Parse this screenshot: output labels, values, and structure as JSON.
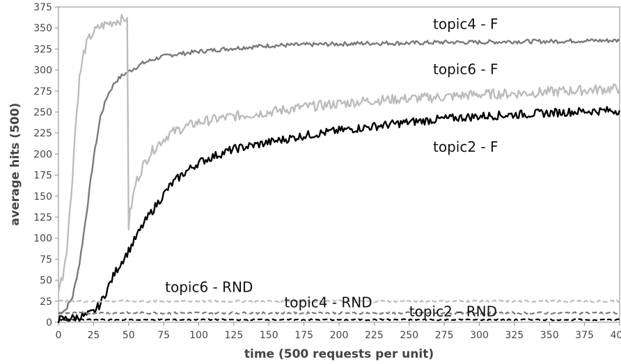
{
  "chart_data": {
    "type": "line",
    "title": "",
    "xlabel": "time (500 requests per unit)",
    "ylabel": "average hits (500)",
    "xlim": [
      0,
      400
    ],
    "ylim": [
      0,
      375
    ],
    "x_ticks": [
      0,
      25,
      50,
      75,
      100,
      125,
      150,
      175,
      200,
      225,
      250,
      275,
      300,
      325,
      350,
      375,
      400
    ],
    "y_ticks": [
      0,
      25,
      50,
      75,
      100,
      125,
      150,
      175,
      200,
      225,
      250,
      275,
      300,
      325,
      350,
      375
    ],
    "grid": false,
    "legend": "none",
    "series": [
      {
        "name": "topic4 - F",
        "color": "#7a7a7a",
        "style": "solid",
        "x": [
          0,
          5,
          10,
          15,
          20,
          25,
          30,
          35,
          40,
          45,
          50,
          55,
          60,
          70,
          80,
          90,
          100,
          125,
          150,
          175,
          200,
          225,
          250,
          275,
          300,
          325,
          350,
          375,
          400
        ],
        "y": [
          10,
          15,
          30,
          70,
          130,
          195,
          245,
          270,
          285,
          293,
          298,
          303,
          308,
          314,
          318,
          320,
          322,
          326,
          329,
          330,
          331,
          332,
          332,
          333,
          333,
          334,
          334,
          335,
          335
        ]
      },
      {
        "name": "topic6 - F",
        "color": "#bcbcbc",
        "style": "solid",
        "x": [
          0,
          3,
          6,
          9,
          12,
          15,
          18,
          21,
          25,
          30,
          35,
          40,
          45,
          49,
          50,
          51,
          55,
          60,
          65,
          70,
          75,
          80,
          90,
          100,
          125,
          150,
          175,
          200,
          225,
          250,
          275,
          300,
          325,
          350,
          375,
          400
        ],
        "y": [
          40,
          55,
          90,
          150,
          230,
          290,
          320,
          335,
          345,
          352,
          355,
          358,
          360,
          362,
          110,
          130,
          165,
          185,
          200,
          210,
          218,
          225,
          232,
          238,
          245,
          250,
          256,
          260,
          264,
          266,
          268,
          271,
          272,
          274,
          276,
          278
        ]
      },
      {
        "name": "topic2 - F",
        "color": "#000000",
        "style": "solid",
        "x": [
          0,
          10,
          20,
          25,
          30,
          35,
          40,
          45,
          50,
          55,
          60,
          65,
          70,
          75,
          80,
          85,
          90,
          95,
          100,
          110,
          125,
          150,
          175,
          200,
          225,
          250,
          275,
          300,
          325,
          350,
          375,
          400
        ],
        "y": [
          3,
          5,
          8,
          12,
          22,
          40,
          58,
          72,
          85,
          100,
          115,
          128,
          140,
          152,
          163,
          171,
          178,
          184,
          190,
          197,
          206,
          214,
          222,
          228,
          233,
          238,
          242,
          245,
          247,
          249,
          251,
          252
        ]
      },
      {
        "name": "topic6 - RND",
        "color": "#bcbcbc",
        "style": "dashed",
        "x": [
          0,
          100,
          200,
          300,
          400
        ],
        "y": [
          25,
          25,
          25,
          25,
          25
        ]
      },
      {
        "name": "topic4 - RND",
        "color": "#7a7a7a",
        "style": "dashed",
        "x": [
          0,
          100,
          200,
          300,
          400
        ],
        "y": [
          11,
          11,
          11,
          11,
          11
        ]
      },
      {
        "name": "topic2 - RND",
        "color": "#000000",
        "style": "dashed",
        "x": [
          0,
          100,
          200,
          300,
          400
        ],
        "y": [
          3,
          3,
          3,
          3,
          3
        ]
      }
    ],
    "annotations": [
      {
        "text": "topic4 - F",
        "x": 267,
        "y": 349
      },
      {
        "text": "topic6 - F",
        "x": 267,
        "y": 295
      },
      {
        "text": "topic2 - F",
        "x": 267,
        "y": 203
      },
      {
        "text": "topic6 - RND",
        "x": 76,
        "y": 36
      },
      {
        "text": "topic4 - RND",
        "x": 161,
        "y": 18
      },
      {
        "text": "topic2 - RND",
        "x": 250,
        "y": 7
      }
    ]
  }
}
